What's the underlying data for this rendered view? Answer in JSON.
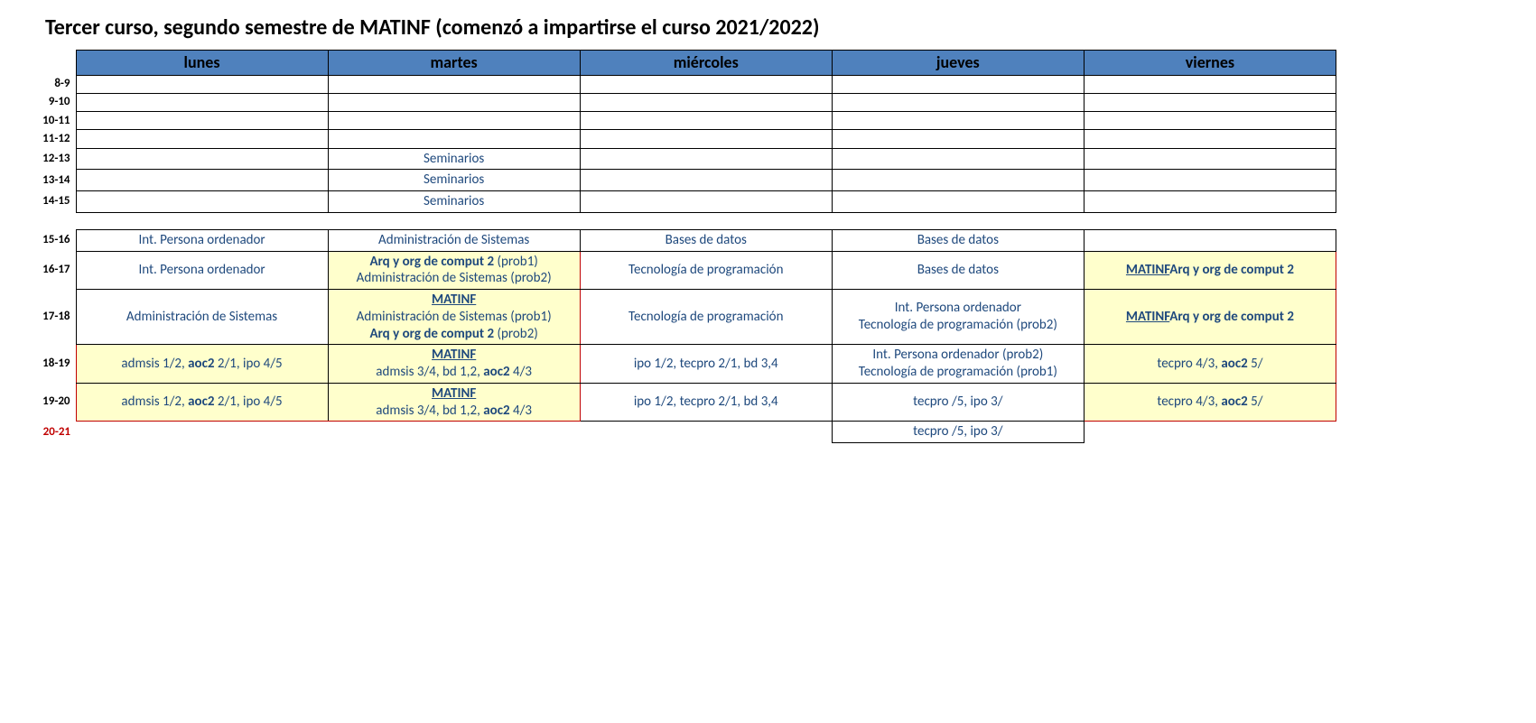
{
  "title": "Tercer curso, segundo semestre de MATINF (comenzó a impartirse el curso 2021/2022)",
  "days": [
    "lunes",
    "martes",
    "miércoles",
    "jueves",
    "viernes"
  ],
  "time_labels": {
    "r1": "8-9",
    "r2": "9-10",
    "r3": "10-11",
    "r4": "11-12",
    "r5": "12-13",
    "r6": "13-14",
    "r7": "14-15",
    "r8": "15-16",
    "r9": "16-17",
    "r10": "17-18",
    "r11": "18-19",
    "r12": "19-20",
    "r13": "20-21"
  },
  "morning": {
    "martes": {
      "r5": "Seminarios",
      "r6": "Seminarios",
      "r7": "Seminarios"
    }
  },
  "afternoon": {
    "r8": {
      "lunes": "Int. Persona ordenador",
      "martes": "Administración de Sistemas",
      "miercoles": "Bases de datos",
      "jueves": "Bases de datos",
      "viernes": ""
    },
    "r9": {
      "lunes": "Int. Persona ordenador",
      "martes_html": "<span><span class='b'>Arq y org de comput 2</span> (prob1)</span><span>Administración de Sistemas (prob2)</span>",
      "miercoles": "Tecnología de programación",
      "jueves": "Bases de datos",
      "viernes_html": "<span class='b u'>MATINF</span><span class='b'>Arq y org de comput 2</span>"
    },
    "r10": {
      "lunes": "Administración de Sistemas",
      "martes_html": "<span class='b u'>MATINF</span><span>Administración de Sistemas (prob1)</span><span><span class='b'>Arq y org de comput 2</span> (prob2)</span>",
      "miercoles": "Tecnología de programación",
      "jueves_html": "<span>Int. Persona ordenador</span><span>Tecnología de programación (prob2)</span>",
      "viernes_html": "<span class='b u'>MATINF</span><span class='b'>Arq y org de comput 2</span>"
    },
    "r11": {
      "lunes_html": "admsis 1/2, <span class='b'>aoc2</span> 2/1, ipo 4/5",
      "martes_html": "<span class='b u'>MATINF</span><span>admsis 3/4, bd 1,2, <span class='b'>aoc2</span> 4/3</span>",
      "miercoles": "ipo 1/2, tecpro 2/1, bd 3,4",
      "jueves_html": "<span>Int. Persona ordenador (prob2)</span><span>Tecnología de programación (prob1)</span>",
      "viernes_html": "tecpro 4/3, <span class='b'>aoc2</span> 5/"
    },
    "r12": {
      "lunes_html": "admsis 1/2, <span class='b'>aoc2</span> 2/1, ipo 4/5",
      "martes_html": "<span class='b u'>MATINF</span><span>admsis 3/4, bd 1,2, <span class='b'>aoc2</span> 4/3</span>",
      "miercoles": "ipo 1/2, tecpro 2/1, bd 3,4",
      "jueves": "tecpro /5, ipo 3/",
      "viernes_html": "tecpro 4/3, <span class='b'>aoc2</span> 5/"
    },
    "r13": {
      "jueves": "tecpro /5, ipo 3/"
    }
  },
  "style": {
    "header_bg": "#4f81bd",
    "link_color": "#1f497d",
    "highlight_bg": "#ffffcc",
    "red": "#c00000"
  }
}
